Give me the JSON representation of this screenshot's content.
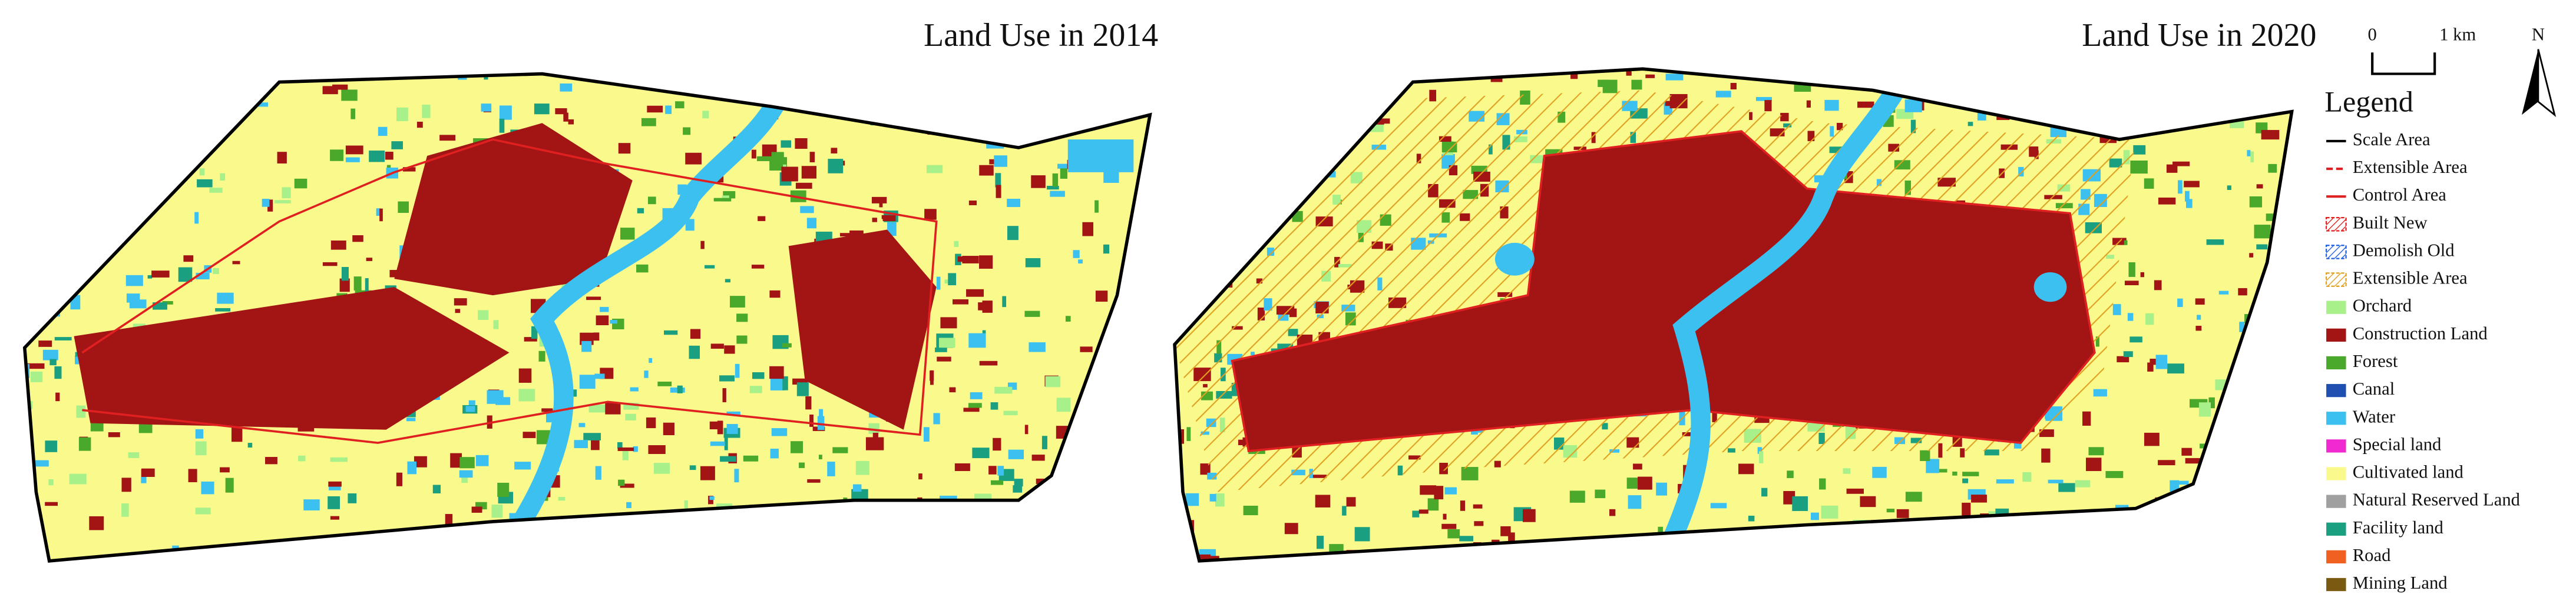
{
  "maps": [
    {
      "title": "Land Use in 2014"
    },
    {
      "title": "Land Use in 2020"
    }
  ],
  "scale_bar": {
    "zero": "0",
    "label": "1 km"
  },
  "north_arrow": "N",
  "legend": {
    "title": "Legend",
    "items": [
      {
        "label": "Scale Area",
        "kind": "line",
        "color": "#000000"
      },
      {
        "label": "Extensible Area",
        "kind": "dash",
        "color": "#e02020"
      },
      {
        "label": "Control Area",
        "kind": "line",
        "color": "#e02020"
      },
      {
        "label": "Built New",
        "kind": "hatch",
        "color": "#e02020"
      },
      {
        "label": "Demolish Old",
        "kind": "hatch",
        "color": "#2060e0"
      },
      {
        "label": "Extensible Area",
        "kind": "hatch",
        "color": "#e0a020"
      },
      {
        "label": "Orchard",
        "kind": "fill",
        "color": "#a8f08a"
      },
      {
        "label": "Construction Land",
        "kind": "fill",
        "color": "#a31515"
      },
      {
        "label": "Forest",
        "kind": "fill",
        "color": "#4aa82a"
      },
      {
        "label": "Canal",
        "kind": "fill",
        "color": "#1f4fb0"
      },
      {
        "label": "Water",
        "kind": "fill",
        "color": "#3cc0f0"
      },
      {
        "label": "Special land",
        "kind": "fill",
        "color": "#f02ad0"
      },
      {
        "label": "Cultivated land",
        "kind": "fill",
        "color": "#fafa8c"
      },
      {
        "label": "Natural Reserved Land",
        "kind": "fill",
        "color": "#a0a0a0"
      },
      {
        "label": "Facility land",
        "kind": "fill",
        "color": "#1aa080"
      },
      {
        "label": "Road",
        "kind": "fill",
        "color": "#f06020"
      },
      {
        "label": "Mining Land",
        "kind": "fill",
        "color": "#7a5a10"
      }
    ]
  }
}
